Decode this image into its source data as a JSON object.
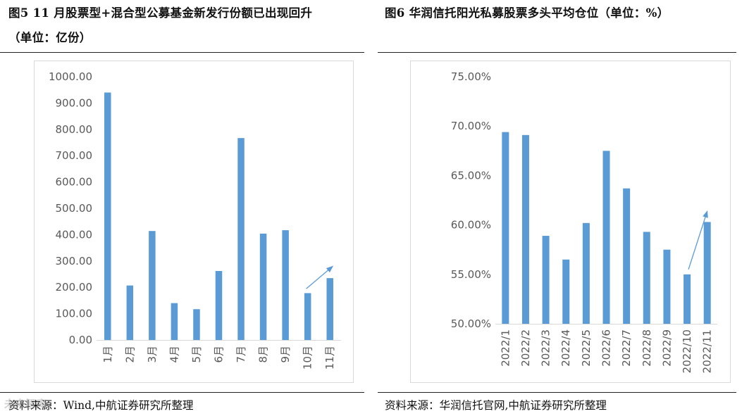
{
  "colors": {
    "bar": "#5b9bd5",
    "arrow": "#5b9bd5",
    "axis": "#d9d9d9",
    "text": "#595959"
  },
  "left": {
    "title_line1": "图5  11 月股票型+混合型公募基金新发行份额已出现回升",
    "title_line2": "（单位：亿份）",
    "source": "资料来源：Wind,中航证券研究所整理",
    "watermark": "未来智库"
  },
  "right": {
    "title": "图6  华润信托阳光私募股票多头平均仓位（单位：%）",
    "source": "资料来源：华润信托官网,中航证券研究所整理"
  },
  "chart_data": [
    {
      "type": "bar",
      "categories": [
        "1月",
        "2月",
        "3月",
        "4月",
        "5月",
        "6月",
        "7月",
        "8月",
        "9月",
        "10月",
        "11月"
      ],
      "values": [
        940,
        207,
        414,
        140,
        117,
        262,
        767,
        404,
        417,
        178,
        235
      ],
      "ylim": [
        0,
        1000
      ],
      "yticks": [
        "0.00",
        "100.00",
        "200.00",
        "300.00",
        "400.00",
        "500.00",
        "600.00",
        "700.00",
        "800.00",
        "900.00",
        "1000.00"
      ],
      "annotation": {
        "kind": "arrow",
        "from": [
          "10月",
          195
        ],
        "to": [
          "11月",
          280
        ]
      }
    },
    {
      "type": "bar",
      "categories": [
        "2022/1",
        "2022/2",
        "2022/3",
        "2022/4",
        "2022/5",
        "2022/6",
        "2022/7",
        "2022/8",
        "2022/9",
        "2022/10",
        "2022/11"
      ],
      "values": [
        69.4,
        69.1,
        58.9,
        56.5,
        60.2,
        67.5,
        63.7,
        59.3,
        57.5,
        55.0,
        60.3
      ],
      "ylim": [
        50,
        75
      ],
      "yticks": [
        "50.00%",
        "55.00%",
        "60.00%",
        "65.00%",
        "70.00%",
        "75.00%"
      ],
      "annotation": {
        "kind": "arrow",
        "from": [
          "2022/10",
          55.5
        ],
        "to": [
          "2022/11",
          61.4
        ]
      }
    }
  ]
}
